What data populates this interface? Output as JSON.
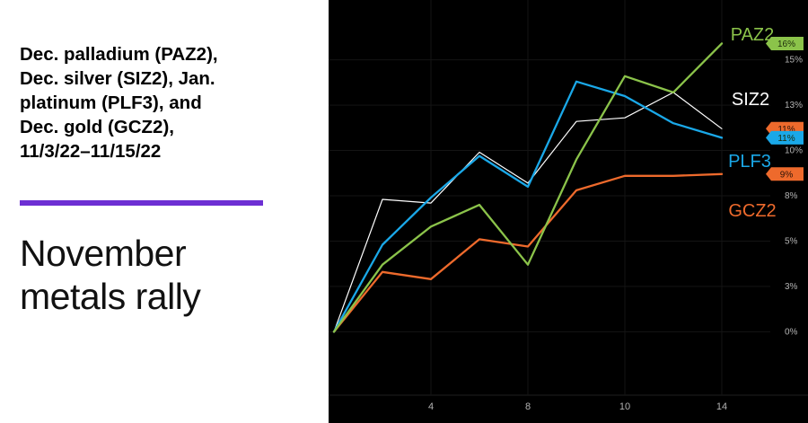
{
  "headline": "Dec. palladium (PAZ2),\nDec. silver (SIZ2), Jan.\nplatinum (PLF3), and\nDec. gold (GCZ2),\n11/3/22–11/15/22",
  "title": "November\nmetals rally",
  "colors": {
    "accent": "#6d2fd3",
    "background": "#000000",
    "paz2": "#8bc34a",
    "siz2": "#ffffff",
    "plf3": "#1aa8e8",
    "gcz2": "#ee6a2c",
    "tick": "#b3b3b3"
  },
  "chart_data": {
    "type": "line",
    "x": [
      1,
      2,
      3,
      4,
      5,
      6,
      7,
      8,
      9,
      10
    ],
    "x_ticks": [
      {
        "index": 2,
        "label": "4"
      },
      {
        "index": 4,
        "label": "8"
      },
      {
        "index": 6,
        "label": "10"
      },
      {
        "index": 8,
        "label": "14"
      }
    ],
    "y_ticks": [
      {
        "value": 0,
        "label": "0%"
      },
      {
        "value": 2.5,
        "label": "3%"
      },
      {
        "value": 5,
        "label": "5%"
      },
      {
        "value": 7.5,
        "label": "8%"
      },
      {
        "value": 10,
        "label": "10%"
      },
      {
        "value": 12.5,
        "label": "13%"
      },
      {
        "value": 15,
        "label": "15%"
      }
    ],
    "ylim": [
      -3.5,
      18.3
    ],
    "series": [
      {
        "name": "SIZ2",
        "color": "#ffffff",
        "values": [
          0,
          7.3,
          7.1,
          9.9,
          8.2,
          11.6,
          11.8,
          13.2,
          11.2,
          null
        ],
        "end_label": "11%",
        "end_value": 11.2
      },
      {
        "name": "GCZ2",
        "color": "#ee6a2c",
        "values": [
          0,
          3.3,
          2.9,
          5.1,
          4.7,
          7.8,
          8.6,
          8.6,
          8.7,
          null
        ],
        "end_label": "9%",
        "end_value": 8.7
      },
      {
        "name": "PLF3",
        "color": "#1aa8e8",
        "values": [
          0,
          4.8,
          7.4,
          9.7,
          8.0,
          13.8,
          13.0,
          11.5,
          10.7,
          null
        ],
        "end_label": "11%",
        "end_value": 10.7
      },
      {
        "name": "PAZ2",
        "color": "#8bc34a",
        "values": [
          0,
          3.7,
          5.8,
          7.0,
          3.7,
          9.5,
          14.1,
          13.2,
          15.9,
          null
        ],
        "end_label": "16%",
        "end_value": 15.9
      }
    ]
  }
}
